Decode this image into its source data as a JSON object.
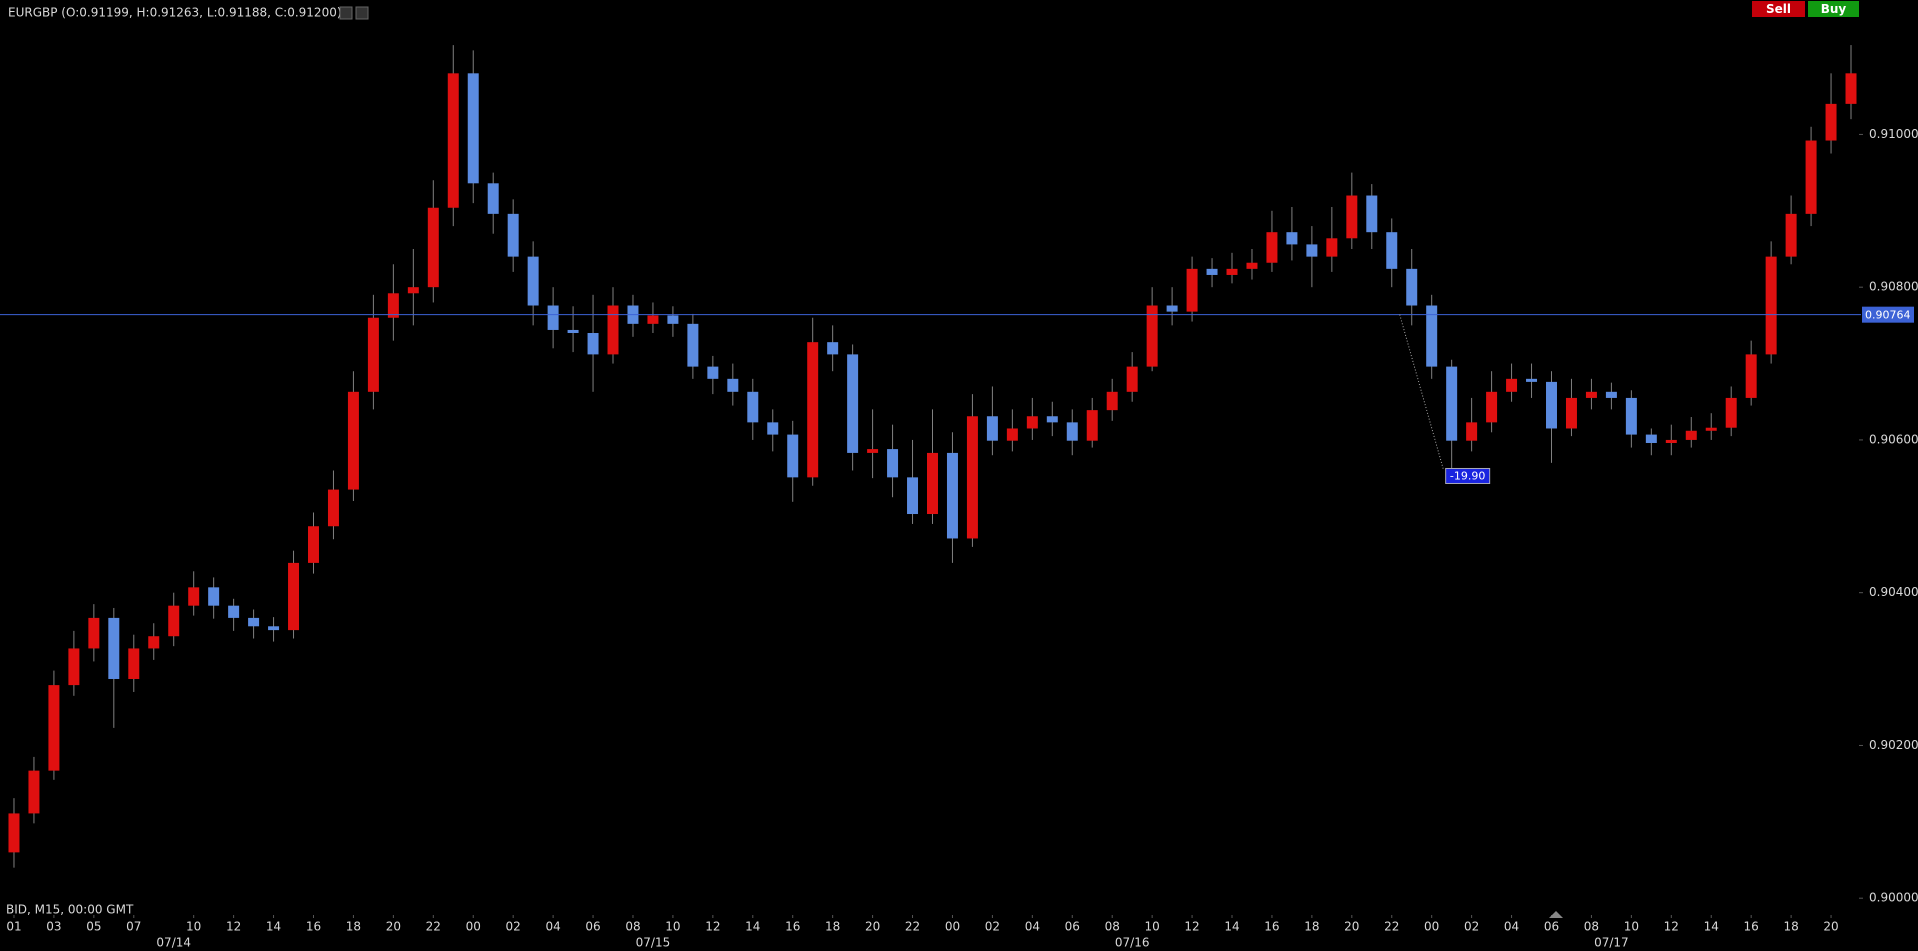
{
  "chart_data": {
    "type": "candlestick",
    "title": "EURGBP (O:0.91199, H:0.91263, L:0.91188, C:0.91200)",
    "footer": "BID, M15, 00:00 GMT",
    "buttons": [
      "Sell",
      "Buy"
    ],
    "up_color": "#e01010",
    "down_color": "#5b8be0",
    "wick_color": "#808080",
    "grid": false,
    "x": [
      1,
      2,
      3,
      4,
      5,
      6,
      7,
      8,
      9,
      10,
      11,
      12,
      13,
      14,
      15,
      16,
      17,
      18,
      19,
      20,
      21,
      22,
      23,
      24,
      25,
      26,
      27,
      28,
      29,
      30,
      31,
      32,
      33,
      34,
      35,
      36,
      37,
      38,
      39,
      40,
      41,
      42,
      43,
      44,
      45,
      46,
      47,
      48,
      49,
      50,
      51,
      52,
      53,
      54,
      55,
      56,
      57,
      58,
      59,
      60,
      61,
      62,
      63,
      64,
      65,
      66,
      67,
      68,
      69,
      70,
      71,
      72,
      73,
      74,
      75,
      76,
      77,
      78,
      79,
      80,
      81,
      82,
      83,
      84,
      85,
      86,
      87,
      88,
      89,
      90,
      91,
      92,
      93
    ],
    "open": [
      0.9006,
      0.90111,
      0.90167,
      0.90279,
      0.90327,
      0.90367,
      0.90287,
      0.90327,
      0.90343,
      0.90383,
      0.90407,
      0.90383,
      0.90367,
      0.90356,
      0.90351,
      0.90439,
      0.90487,
      0.90535,
      0.90663,
      0.9076,
      0.90792,
      0.908,
      0.90904,
      0.9108,
      0.90936,
      0.90896,
      0.9084,
      0.90776,
      0.90744,
      0.9074,
      0.90712,
      0.90776,
      0.90752,
      0.90763,
      0.90752,
      0.90696,
      0.9068,
      0.90663,
      0.90623,
      0.90607,
      0.90551,
      0.90728,
      0.90712,
      0.90583,
      0.90588,
      0.90551,
      0.90503,
      0.90583,
      0.90471,
      0.90631,
      0.90599,
      0.90615,
      0.90631,
      0.90623,
      0.90599,
      0.90639,
      0.90663,
      0.90696,
      0.90776,
      0.90768,
      0.90824,
      0.90816,
      0.90824,
      0.90832,
      0.90872,
      0.90856,
      0.9084,
      0.90864,
      0.9092,
      0.90872,
      0.90824,
      0.90776,
      0.90696,
      0.90599,
      0.90623,
      0.90663,
      0.9068,
      0.90676,
      0.90615,
      0.90655,
      0.90663,
      0.90655,
      0.90607,
      0.90596,
      0.906,
      0.90612,
      0.90616,
      0.90655,
      0.90712,
      0.9084,
      0.90896,
      0.90992,
      0.9104
    ],
    "high": [
      0.90131,
      0.90185,
      0.90298,
      0.9035,
      0.90385,
      0.9038,
      0.90345,
      0.9036,
      0.904,
      0.90428,
      0.9042,
      0.90392,
      0.90378,
      0.90368,
      0.90455,
      0.90505,
      0.9056,
      0.9069,
      0.9079,
      0.9083,
      0.9085,
      0.9094,
      0.91117,
      0.9111,
      0.9095,
      0.90915,
      0.9086,
      0.908,
      0.90775,
      0.9079,
      0.908,
      0.9079,
      0.9078,
      0.90775,
      0.90765,
      0.9071,
      0.907,
      0.9068,
      0.9064,
      0.90625,
      0.9076,
      0.9075,
      0.90725,
      0.9064,
      0.9062,
      0.906,
      0.9064,
      0.9061,
      0.9066,
      0.9067,
      0.9064,
      0.90655,
      0.9065,
      0.9064,
      0.90655,
      0.9068,
      0.90715,
      0.908,
      0.908,
      0.9084,
      0.90838,
      0.90845,
      0.9085,
      0.909,
      0.90905,
      0.9088,
      0.90905,
      0.9095,
      0.90935,
      0.9089,
      0.9085,
      0.9079,
      0.90705,
      0.90655,
      0.9069,
      0.907,
      0.907,
      0.9069,
      0.9068,
      0.9068,
      0.90675,
      0.90665,
      0.90615,
      0.9062,
      0.9063,
      0.90635,
      0.9067,
      0.9073,
      0.9086,
      0.9092,
      0.9101,
      0.9108,
      0.91117
    ],
    "low": [
      0.9004,
      0.90098,
      0.90155,
      0.90265,
      0.9031,
      0.90223,
      0.9027,
      0.90312,
      0.9033,
      0.9037,
      0.90366,
      0.9035,
      0.9034,
      0.90336,
      0.9034,
      0.90425,
      0.9047,
      0.9052,
      0.9064,
      0.9073,
      0.9075,
      0.9078,
      0.9088,
      0.9091,
      0.9087,
      0.9082,
      0.9075,
      0.9072,
      0.90715,
      0.90663,
      0.907,
      0.90735,
      0.9074,
      0.90735,
      0.9068,
      0.9066,
      0.90645,
      0.906,
      0.90585,
      0.90519,
      0.9054,
      0.9069,
      0.9056,
      0.9055,
      0.90525,
      0.9049,
      0.9049,
      0.90439,
      0.9046,
      0.9058,
      0.90585,
      0.906,
      0.90605,
      0.9058,
      0.9059,
      0.90625,
      0.9065,
      0.9069,
      0.9075,
      0.90755,
      0.908,
      0.90805,
      0.9081,
      0.9082,
      0.90835,
      0.908,
      0.9082,
      0.9085,
      0.9085,
      0.908,
      0.9075,
      0.9068,
      0.9056,
      0.90585,
      0.9061,
      0.9065,
      0.90655,
      0.9057,
      0.90605,
      0.9064,
      0.9064,
      0.9059,
      0.9058,
      0.9058,
      0.9059,
      0.906,
      0.90605,
      0.90645,
      0.907,
      0.9083,
      0.9088,
      0.90975,
      0.9102
    ],
    "close": [
      0.90111,
      0.90167,
      0.90279,
      0.90327,
      0.90367,
      0.90287,
      0.90327,
      0.90343,
      0.90383,
      0.90407,
      0.90383,
      0.90367,
      0.90356,
      0.90351,
      0.90439,
      0.90487,
      0.90535,
      0.90663,
      0.9076,
      0.90792,
      0.908,
      0.90904,
      0.9108,
      0.90936,
      0.90896,
      0.9084,
      0.90776,
      0.90744,
      0.9074,
      0.90712,
      0.90776,
      0.90752,
      0.90763,
      0.90752,
      0.90696,
      0.9068,
      0.90663,
      0.90623,
      0.90607,
      0.90551,
      0.90728,
      0.90712,
      0.90583,
      0.90588,
      0.90551,
      0.90503,
      0.90583,
      0.90471,
      0.90631,
      0.90599,
      0.90615,
      0.90631,
      0.90623,
      0.90599,
      0.90639,
      0.90663,
      0.90696,
      0.90776,
      0.90768,
      0.90824,
      0.90816,
      0.90824,
      0.90832,
      0.90872,
      0.90856,
      0.9084,
      0.90864,
      0.9092,
      0.90872,
      0.90824,
      0.90776,
      0.90696,
      0.90599,
      0.90623,
      0.90663,
      0.9068,
      0.90676,
      0.90615,
      0.90655,
      0.90663,
      0.90655,
      0.90607,
      0.90596,
      0.906,
      0.90612,
      0.90616,
      0.90655,
      0.90712,
      0.9084,
      0.90896,
      0.90992,
      0.9104,
      0.9108
    ],
    "xlim": [
      0.3,
      93.4
    ],
    "xticks": [
      {
        "value": 1,
        "label": "01"
      },
      {
        "value": 3,
        "label": "03"
      },
      {
        "value": 5,
        "label": "05"
      },
      {
        "value": 7,
        "label": "07"
      },
      {
        "value": 10,
        "label": "10"
      },
      {
        "value": 12,
        "label": "12"
      },
      {
        "value": 14,
        "label": "14"
      },
      {
        "value": 16,
        "label": "16"
      },
      {
        "value": 18,
        "label": "18"
      },
      {
        "value": 20,
        "label": "20"
      },
      {
        "value": 22,
        "label": "22"
      },
      {
        "value": 24,
        "label": "00"
      },
      {
        "value": 26,
        "label": "02"
      },
      {
        "value": 28,
        "label": "04"
      },
      {
        "value": 30,
        "label": "06"
      },
      {
        "value": 32,
        "label": "08"
      },
      {
        "value": 34,
        "label": "10"
      },
      {
        "value": 36,
        "label": "12"
      },
      {
        "value": 38,
        "label": "14"
      },
      {
        "value": 40,
        "label": "16"
      },
      {
        "value": 42,
        "label": "18"
      },
      {
        "value": 44,
        "label": "20"
      },
      {
        "value": 46,
        "label": "22"
      },
      {
        "value": 48,
        "label": "00"
      },
      {
        "value": 50,
        "label": "02"
      },
      {
        "value": 52,
        "label": "04"
      },
      {
        "value": 54,
        "label": "06"
      },
      {
        "value": 56,
        "label": "08"
      },
      {
        "value": 58,
        "label": "10"
      },
      {
        "value": 60,
        "label": "12"
      },
      {
        "value": 62,
        "label": "14"
      },
      {
        "value": 64,
        "label": "16"
      },
      {
        "value": 66,
        "label": "18"
      },
      {
        "value": 68,
        "label": "20"
      },
      {
        "value": 70,
        "label": "22"
      },
      {
        "value": 72,
        "label": "00"
      },
      {
        "value": 74,
        "label": "02"
      },
      {
        "value": 76,
        "label": "04"
      },
      {
        "value": 78,
        "label": "06"
      },
      {
        "value": 80,
        "label": "08"
      },
      {
        "value": 82,
        "label": "10"
      },
      {
        "value": 84,
        "label": "12"
      },
      {
        "value": 86,
        "label": "14"
      },
      {
        "value": 88,
        "label": "16"
      },
      {
        "value": 90,
        "label": "18"
      },
      {
        "value": 92,
        "label": "20"
      }
    ],
    "date_labels": [
      {
        "value": 9,
        "label": "07/14"
      },
      {
        "value": 33,
        "label": "07/15"
      },
      {
        "value": 57,
        "label": "07/16"
      },
      {
        "value": 81,
        "label": "07/17"
      }
    ],
    "ylim": [
      0.89978,
      0.91176
    ],
    "yticks": [
      {
        "value": 0.9,
        "label": "0.90000"
      },
      {
        "value": 0.902,
        "label": "0.90200"
      },
      {
        "value": 0.904,
        "label": "0.90400"
      },
      {
        "value": 0.906,
        "label": "0.90600"
      },
      {
        "value": 0.908,
        "label": "0.90800"
      },
      {
        "value": 0.91,
        "label": "0.91000"
      }
    ],
    "price_line": {
      "value": 0.90764,
      "color": "#3c62d6"
    },
    "measure_label": "-19.90"
  }
}
